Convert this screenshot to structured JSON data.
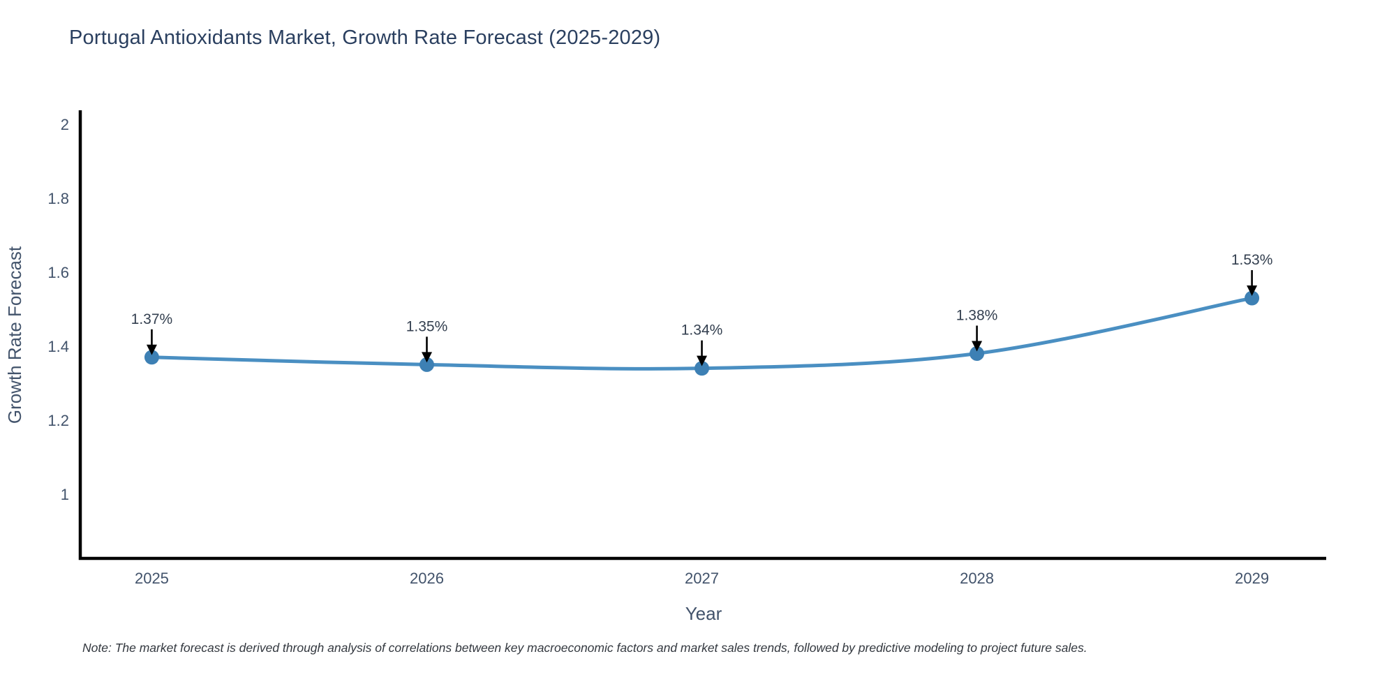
{
  "title": "Portugal Antioxidants Market, Growth Rate Forecast (2025-2029)",
  "note": "Note: The market forecast is derived through analysis of correlations between key macroeconomic factors and market sales trends, followed by predictive modeling to project future sales.",
  "colors": {
    "title_text": "#2a3f5f",
    "axis_text": "#42536b",
    "annotation_text": "#333f4f",
    "note_text": "#33383f",
    "spine": "#000000",
    "line": "#4a8fc2",
    "marker": "#3d80b4",
    "arrow": "#000000",
    "background": "#ffffff"
  },
  "chart_data": {
    "type": "line",
    "title": "Portugal Antioxidants Market, Growth Rate Forecast (2025-2029)",
    "x": [
      2025,
      2026,
      2027,
      2028,
      2029
    ],
    "values": [
      1.37,
      1.35,
      1.34,
      1.38,
      1.53
    ],
    "point_labels": [
      "1.37%",
      "1.35%",
      "1.34%",
      "1.38%",
      "1.53%"
    ],
    "series_name": "Growth Rate Forecast",
    "xlabel": "Year",
    "ylabel": "Growth Rate Forecast",
    "xticks": [
      2025,
      2026,
      2027,
      2028,
      2029
    ],
    "yticks": [
      1,
      1.2,
      1.4,
      1.6,
      1.8,
      2
    ],
    "xlim": [
      2024.74,
      2029.27
    ],
    "ylim": [
      0.826,
      2.034
    ],
    "grid": false,
    "legend": "none",
    "line_smoothing": "spline",
    "annotations": "value labels with downward arrows above each point"
  }
}
